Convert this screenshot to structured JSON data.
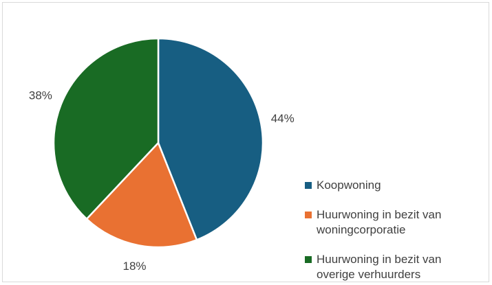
{
  "chart_data": {
    "type": "pie",
    "categories": [
      "Koopwoning",
      "Huurwoning in bezit van woningcorporatie",
      "Huurwoning in bezit van overige verhuurders"
    ],
    "values": [
      44,
      18,
      38
    ],
    "value_labels": [
      "44%",
      "18%",
      "38%"
    ],
    "colors": [
      "#175e82",
      "#e97132",
      "#196b24"
    ],
    "legend": "right"
  }
}
